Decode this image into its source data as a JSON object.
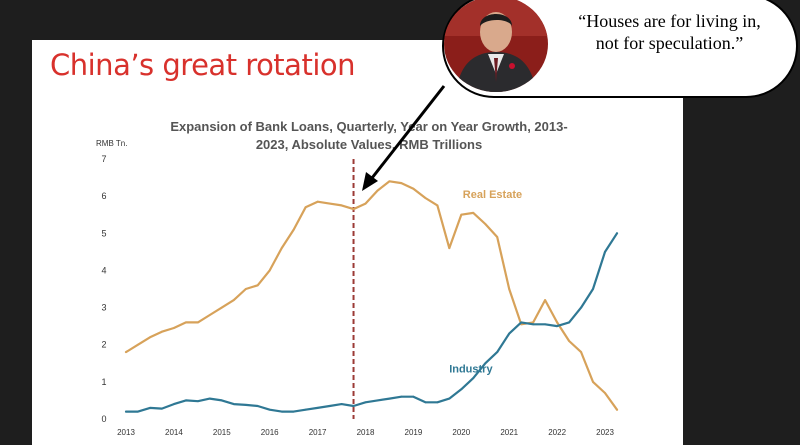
{
  "slide_title": "China’s great rotation",
  "quote": {
    "line1": "“Houses are for living in,",
    "line2": "not for speculation.”"
  },
  "colors": {
    "real_estate": "#d7a25a",
    "industry": "#2f7894",
    "title_red": "#d8312c",
    "marker": "#9c3a36"
  },
  "chart_data": {
    "type": "line",
    "title": "Expansion of  Bank Loans, Quarterly, Year on Year Growth, 2013-2023, Absolute Values, RMB Trillions",
    "title_lines": [
      "Expansion of  Bank Loans, Quarterly, Year on Year Growth, 2013-",
      "2023, Absolute Values, RMB Trillions"
    ],
    "ylabel": "RMB Tn.",
    "ylim": [
      0,
      7
    ],
    "yticks": [
      "0",
      "1",
      "2",
      "3",
      "4",
      "5",
      "6",
      "7"
    ],
    "xticks": [
      "2013",
      "2014",
      "2015",
      "2016",
      "2017",
      "2018",
      "2019",
      "2020",
      "2021",
      "2022",
      "2023"
    ],
    "grid": false,
    "marker_line": {
      "x": 2017.75,
      "style": "dashed vertical"
    },
    "series": [
      {
        "name": "Real Estate",
        "x": [
          2013.0,
          2013.25,
          2013.5,
          2013.75,
          2014.0,
          2014.25,
          2014.5,
          2014.75,
          2015.0,
          2015.25,
          2015.5,
          2015.75,
          2016.0,
          2016.25,
          2016.5,
          2016.75,
          2017.0,
          2017.25,
          2017.5,
          2017.75,
          2018.0,
          2018.25,
          2018.5,
          2018.75,
          2019.0,
          2019.25,
          2019.5,
          2019.75,
          2020.0,
          2020.25,
          2020.5,
          2020.75,
          2021.0,
          2021.25,
          2021.5,
          2021.75,
          2022.0,
          2022.25,
          2022.5,
          2022.75,
          2023.0,
          2023.25
        ],
        "values": [
          1.8,
          2.0,
          2.2,
          2.35,
          2.45,
          2.6,
          2.6,
          2.8,
          3.0,
          3.2,
          3.5,
          3.6,
          4.0,
          4.6,
          5.1,
          5.7,
          5.85,
          5.8,
          5.75,
          5.65,
          5.8,
          6.15,
          6.4,
          6.35,
          6.2,
          5.95,
          5.75,
          4.6,
          5.5,
          5.55,
          5.25,
          4.9,
          3.5,
          2.55,
          2.6,
          3.2,
          2.6,
          2.1,
          1.8,
          1.0,
          0.7,
          0.25
        ]
      },
      {
        "name": "Industry",
        "x": [
          2013.0,
          2013.25,
          2013.5,
          2013.75,
          2014.0,
          2014.25,
          2014.5,
          2014.75,
          2015.0,
          2015.25,
          2015.5,
          2015.75,
          2016.0,
          2016.25,
          2016.5,
          2016.75,
          2017.0,
          2017.25,
          2017.5,
          2017.75,
          2018.0,
          2018.25,
          2018.5,
          2018.75,
          2019.0,
          2019.25,
          2019.5,
          2019.75,
          2020.0,
          2020.25,
          2020.5,
          2020.75,
          2021.0,
          2021.25,
          2021.5,
          2021.75,
          2022.0,
          2022.25,
          2022.5,
          2022.75,
          2023.0,
          2023.25
        ],
        "values": [
          0.2,
          0.2,
          0.3,
          0.28,
          0.4,
          0.5,
          0.48,
          0.55,
          0.5,
          0.4,
          0.38,
          0.35,
          0.25,
          0.2,
          0.2,
          0.25,
          0.3,
          0.35,
          0.4,
          0.35,
          0.45,
          0.5,
          0.55,
          0.6,
          0.6,
          0.45,
          0.45,
          0.55,
          0.8,
          1.1,
          1.5,
          1.8,
          2.3,
          2.6,
          2.55,
          2.55,
          2.5,
          2.6,
          3.0,
          3.5,
          4.5,
          5.0
        ]
      }
    ]
  }
}
